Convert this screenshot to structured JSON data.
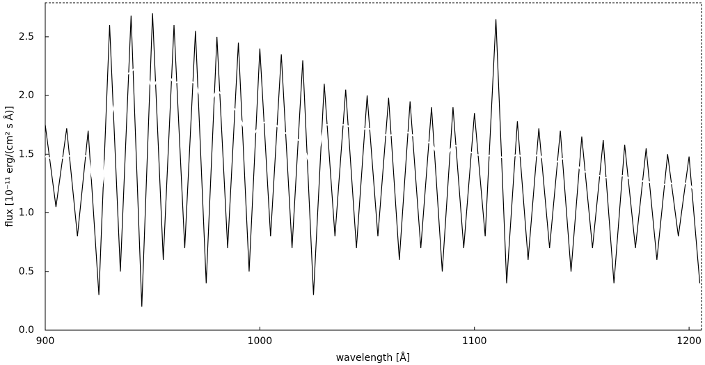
{
  "chart_data": {
    "type": "line",
    "xlabel": "wavelength [Å]",
    "ylabel": "flux [10⁻¹¹ erg/(cm² s Å)]",
    "x": [
      900,
      905,
      910,
      915,
      920,
      925,
      930,
      935,
      940,
      945,
      950,
      955,
      960,
      965,
      970,
      975,
      980,
      985,
      990,
      995,
      1000,
      1005,
      1010,
      1015,
      1020,
      1025,
      1030,
      1035,
      1040,
      1045,
      1050,
      1055,
      1060,
      1065,
      1070,
      1075,
      1080,
      1085,
      1090,
      1095,
      1100,
      1105,
      1110,
      1115,
      1120,
      1125,
      1130,
      1135,
      1140,
      1145,
      1150,
      1155,
      1160,
      1165,
      1170,
      1175,
      1180,
      1185,
      1190,
      1195,
      1200,
      1205
    ],
    "series": [
      {
        "color": "#000000",
        "values": [
          1.75,
          1.05,
          1.72,
          0.8,
          1.7,
          0.3,
          2.6,
          0.5,
          2.68,
          0.2,
          2.7,
          0.6,
          2.6,
          0.7,
          2.55,
          0.4,
          2.5,
          0.7,
          2.45,
          0.5,
          2.4,
          0.8,
          2.35,
          0.7,
          2.3,
          0.3,
          2.1,
          0.8,
          2.05,
          0.7,
          2.0,
          0.8,
          1.98,
          0.6,
          1.95,
          0.7,
          1.9,
          0.5,
          1.9,
          0.7,
          1.85,
          0.8,
          2.65,
          0.4,
          1.78,
          0.6,
          1.72,
          0.7,
          1.7,
          0.5,
          1.65,
          0.7,
          1.62,
          0.4,
          1.58,
          0.7,
          1.55,
          0.6,
          1.5,
          0.8,
          1.48,
          0.4
        ]
      },
      {
        "color": "#ffffff",
        "values": [
          1.48,
          1.45,
          1.48,
          1.5,
          1.48,
          1.0,
          1.75,
          2.15,
          2.2,
          2.3,
          2.05,
          2.25,
          2.1,
          2.15,
          2.1,
          1.85,
          2.05,
          1.95,
          1.85,
          1.6,
          1.75,
          1.8,
          1.7,
          1.65,
          1.6,
          1.3,
          1.75,
          1.75,
          1.75,
          1.7,
          1.72,
          1.7,
          1.65,
          1.7,
          1.68,
          1.6,
          1.6,
          1.4,
          1.58,
          1.55,
          1.5,
          1.48,
          1.5,
          1.45,
          1.5,
          1.45,
          1.5,
          1.4,
          1.45,
          1.5,
          1.35,
          1.35,
          1.3,
          1.3,
          1.32,
          1.25,
          1.28,
          1.22,
          1.25,
          1.25,
          1.25,
          1.12
        ]
      }
    ],
    "xlim": [
      900,
      1205.8
    ],
    "ylim": [
      0,
      2.79
    ],
    "xticks": [
      900,
      1000,
      1100,
      1200
    ],
    "yticks": [
      {
        "value": 0,
        "label": "0.0"
      },
      0.5,
      {
        "value": 1,
        "label": "1.0"
      },
      1.5,
      {
        "value": 2,
        "label": "2.0"
      },
      2.5
    ]
  }
}
